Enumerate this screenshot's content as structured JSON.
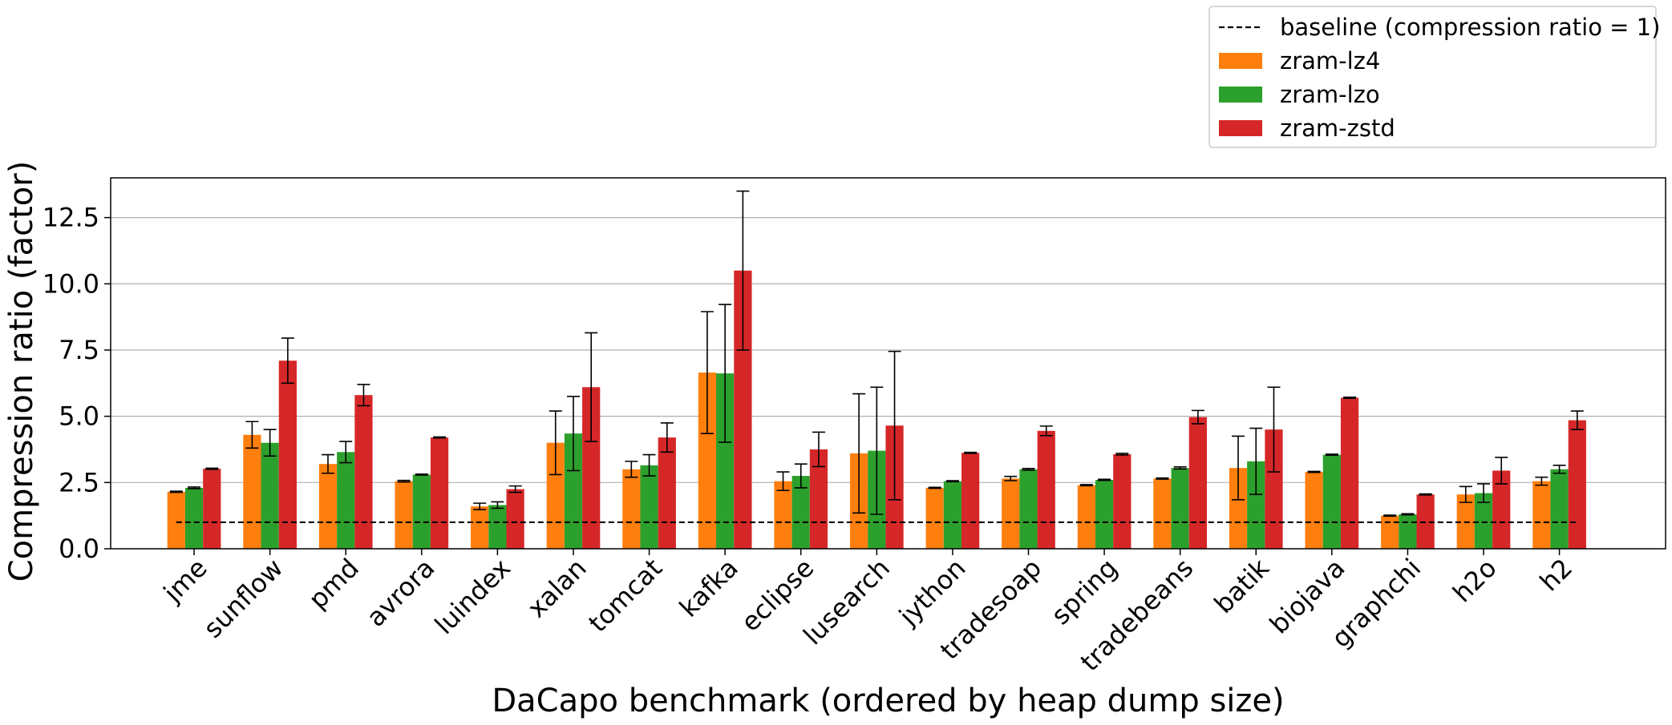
{
  "chart_data": {
    "type": "bar",
    "xlabel": "DaCapo benchmark (ordered by heap dump size)",
    "ylabel": "Compression ratio (factor)",
    "ylim": [
      0,
      14
    ],
    "yticks": [
      "0.0",
      "2.5",
      "5.0",
      "7.5",
      "10.0",
      "12.5"
    ],
    "grid": "horizontal",
    "legend_position": "top-right, outside plot",
    "categories": [
      "jme",
      "sunflow",
      "pmd",
      "avrora",
      "luindex",
      "xalan",
      "tomcat",
      "kafka",
      "eclipse",
      "lusearch",
      "jython",
      "tradesoap",
      "spring",
      "tradebeans",
      "batik",
      "biojava",
      "graphchi",
      "h2o",
      "h2"
    ],
    "series": [
      {
        "name": "zram-lz4",
        "color": "#ff7f0e",
        "values": [
          2.15,
          4.3,
          3.2,
          2.55,
          1.6,
          4.0,
          3.0,
          6.65,
          2.55,
          3.6,
          2.3,
          2.65,
          2.4,
          2.65,
          3.05,
          2.9,
          1.25,
          2.05,
          2.55
        ],
        "errors": [
          0.02,
          0.5,
          0.35,
          0.03,
          0.12,
          1.2,
          0.3,
          2.3,
          0.35,
          2.25,
          0.02,
          0.08,
          0.02,
          0.02,
          1.2,
          0.02,
          0.02,
          0.3,
          0.15
        ]
      },
      {
        "name": "zram-lzo",
        "color": "#2ca02c",
        "values": [
          2.3,
          4.0,
          3.65,
          2.8,
          1.65,
          4.35,
          3.15,
          6.62,
          2.75,
          3.7,
          2.55,
          3.0,
          2.6,
          3.05,
          3.3,
          3.55,
          1.3,
          2.1,
          3.0
        ],
        "errors": [
          0.03,
          0.5,
          0.4,
          0.02,
          0.12,
          1.4,
          0.4,
          2.6,
          0.45,
          2.4,
          0.02,
          0.03,
          0.02,
          0.04,
          1.25,
          0.02,
          0.02,
          0.35,
          0.15
        ]
      },
      {
        "name": "zram-zstd",
        "color": "#d62728",
        "values": [
          3.02,
          7.1,
          5.8,
          4.2,
          2.25,
          6.1,
          4.2,
          10.5,
          3.75,
          4.65,
          3.62,
          4.45,
          3.57,
          4.97,
          4.5,
          5.7,
          2.05,
          2.95,
          4.85
        ],
        "errors": [
          0.02,
          0.85,
          0.4,
          0.02,
          0.12,
          2.05,
          0.55,
          3.0,
          0.65,
          2.8,
          0.02,
          0.18,
          0.03,
          0.25,
          1.6,
          0.02,
          0.02,
          0.5,
          0.35
        ]
      }
    ],
    "baseline": {
      "name": "baseline (compression ratio = 1)",
      "value": 1
    }
  }
}
